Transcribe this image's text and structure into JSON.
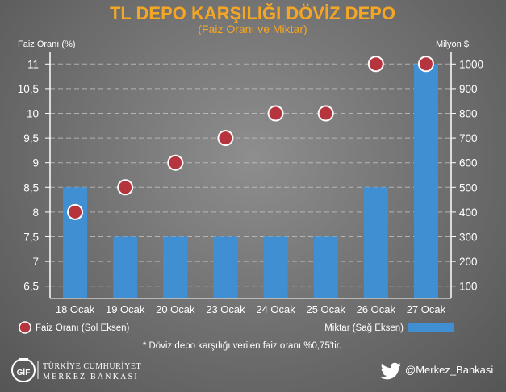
{
  "chart_data": {
    "type": "bar",
    "title": "TL DEPO KARŞILIĞI DÖVİZ DEPO",
    "subtitle": "(Faiz Oranı ve Miktar)",
    "left_axis_label": "Faiz Oranı (%)",
    "right_axis_label": "Milyon $",
    "categories": [
      "18 Ocak",
      "19 Ocak",
      "20 Ocak",
      "23 Ocak",
      "24 Ocak",
      "25 Ocak",
      "26 Ocak",
      "27 Ocak"
    ],
    "left_ticks": [
      "6,5",
      "7",
      "7,5",
      "8",
      "8,5",
      "9",
      "9,5",
      "10",
      "10,5",
      "11"
    ],
    "right_ticks": [
      "100",
      "200",
      "300",
      "400",
      "500",
      "600",
      "700",
      "800",
      "900",
      "1000"
    ],
    "left_ylim": [
      6.25,
      11.25
    ],
    "right_ylim": [
      50,
      1050
    ],
    "grid": true,
    "series": [
      {
        "name": "Miktar (Sağ Eksen)",
        "axis": "right",
        "kind": "bar",
        "color": "#3f8fd2",
        "values": [
          500,
          300,
          300,
          300,
          300,
          300,
          500,
          1000
        ]
      },
      {
        "name": "Faiz Oranı (Sol Eksen)",
        "axis": "left",
        "kind": "marker",
        "color": "#b5343e",
        "values": [
          8,
          8.5,
          9,
          9.5,
          10,
          10,
          11,
          11
        ]
      }
    ],
    "legend_placement": "bottom",
    "footnote": "* Döviz depo karşılığı verilen faiz oranı %0,75'tir."
  },
  "branding": {
    "logo_line1": "TÜRKİYE CUMHURİYET",
    "logo_line2": "MERKEZ BANKASI",
    "logo_mark": "GİF",
    "twitter_handle": "@Merkez_Bankasi",
    "icon": "twitter-bird-icon"
  }
}
